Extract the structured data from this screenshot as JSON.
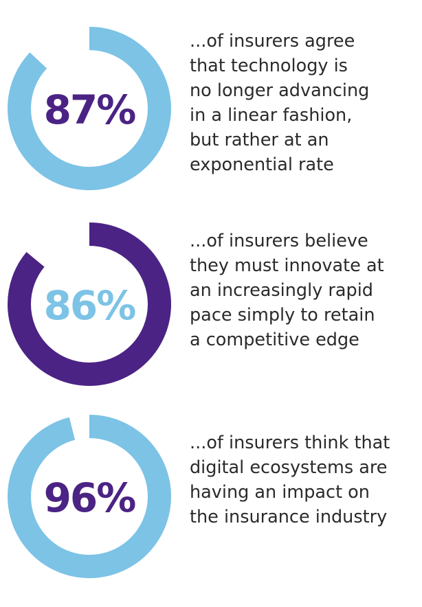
{
  "chart_data": [
    {
      "type": "pie",
      "value": 87,
      "label": "87%",
      "ring_color": "#7cc3e6",
      "text_color": "#4b2384",
      "description_lines": [
        "...of insurers agree",
        "that technology is",
        "no longer advancing",
        "in a linear fashion,",
        "but rather at an",
        "exponential rate"
      ]
    },
    {
      "type": "pie",
      "value": 86,
      "label": "86%",
      "ring_color": "#4b2384",
      "text_color": "#7cc3e6",
      "description_lines": [
        "...of insurers believe",
        "they must innovate at",
        "an increasingly rapid",
        "pace simply to retain",
        "a competitive edge"
      ]
    },
    {
      "type": "pie",
      "value": 96,
      "label": "96%",
      "ring_color": "#7cc3e6",
      "text_color": "#4b2384",
      "description_lines": [
        "...of insurers think that",
        "digital ecosystems are",
        "having an impact on",
        "the insurance industry"
      ]
    }
  ]
}
